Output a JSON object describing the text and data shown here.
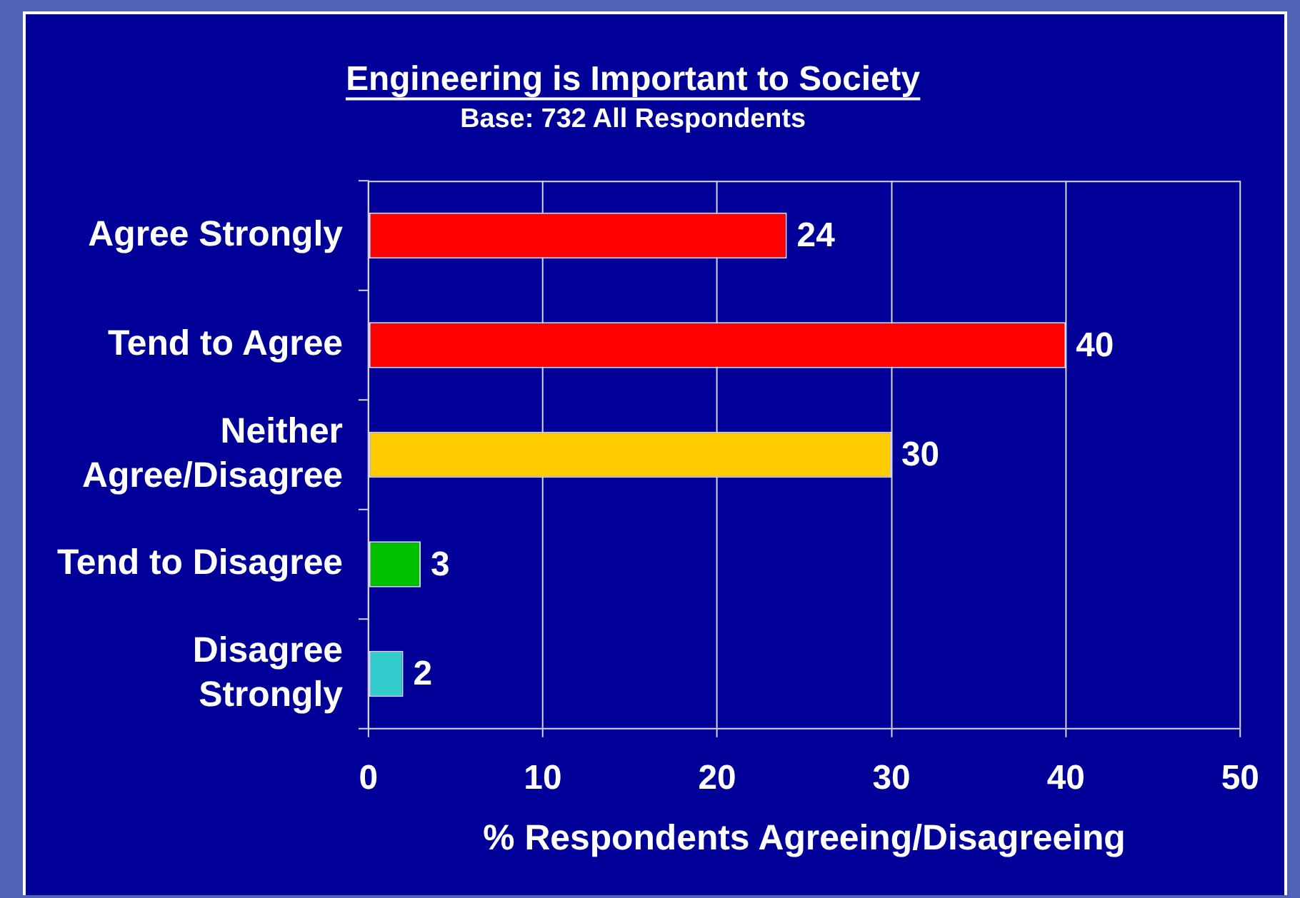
{
  "chart_data": {
    "type": "bar",
    "orientation": "horizontal",
    "title": "Engineering is Important to Society",
    "subtitle": "Base: 732 All Respondents",
    "xlabel": "% Respondents Agreeing/Disagreeing",
    "categories": [
      "Agree Strongly",
      "Tend to Agree",
      "Neither Agree/Disagree",
      "Tend to Disagree",
      "Disagree Strongly"
    ],
    "values": [
      24,
      40,
      30,
      3,
      2
    ],
    "colors": [
      "#ff0000",
      "#ff0000",
      "#ffcc00",
      "#00c000",
      "#33cccc"
    ],
    "xlim": [
      0,
      50
    ],
    "xticks": [
      0,
      10,
      20,
      30,
      40,
      50
    ],
    "grid": "x",
    "data_labels": true
  }
}
